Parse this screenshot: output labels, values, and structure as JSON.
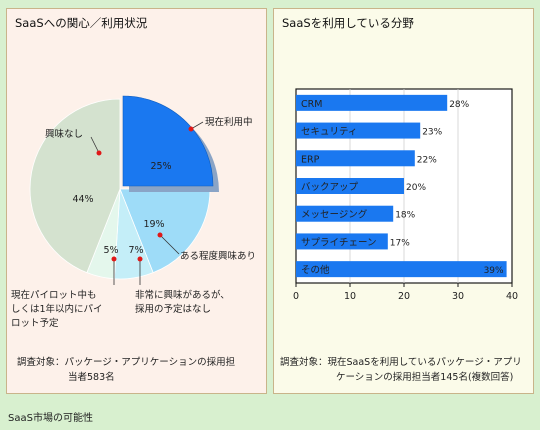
{
  "caption": "SaaS市場の可能性",
  "chart_data": [
    {
      "type": "pie",
      "title": "SaaSへの関心／利用状況",
      "slices": [
        {
          "label": "現在利用中",
          "value": 25,
          "value_label": "25%",
          "color": "#1a78f0",
          "exploded": true
        },
        {
          "label": "ある程度興味あり",
          "value": 19,
          "value_label": "19%",
          "color": "#9edcf8"
        },
        {
          "label_lines": [
            "非常に興味があるが、",
            "採用の予定はなし"
          ],
          "value": 7,
          "value_label": "7%",
          "color": "#c4eef8"
        },
        {
          "label_lines": [
            "現在パイロット中も",
            "しくは1年以内にパイ",
            "ロット予定"
          ],
          "value": 5,
          "value_label": "5%",
          "color": "#e4f7ec"
        },
        {
          "label": "興味なし",
          "value": 44,
          "value_label": "44%",
          "color": "#d4e2cf"
        }
      ],
      "note_lines": [
        "調査対象：パッケージ・アプリケーションの採用担",
        "当者583名"
      ]
    },
    {
      "type": "bar",
      "orientation": "horizontal",
      "title": "SaaSを利用している分野",
      "categories": [
        "CRM",
        "セキュリティ",
        "ERP",
        "バックアップ",
        "メッセージング",
        "サプライチェーン",
        "その他"
      ],
      "values": [
        28,
        23,
        22,
        20,
        18,
        17,
        39
      ],
      "value_labels": [
        "28%",
        "23%",
        "22%",
        "20%",
        "18%",
        "17%",
        "39%"
      ],
      "xlim": [
        0,
        40
      ],
      "xticks": [
        "0",
        "10",
        "20",
        "30",
        "40"
      ],
      "bar_color": "#1a78f0",
      "grid": true,
      "note_lines": [
        "調査対象：現在SaaSを利用しているパッケージ・アプリ",
        "ケーションの採用担当者145名(複数回答)"
      ]
    }
  ]
}
